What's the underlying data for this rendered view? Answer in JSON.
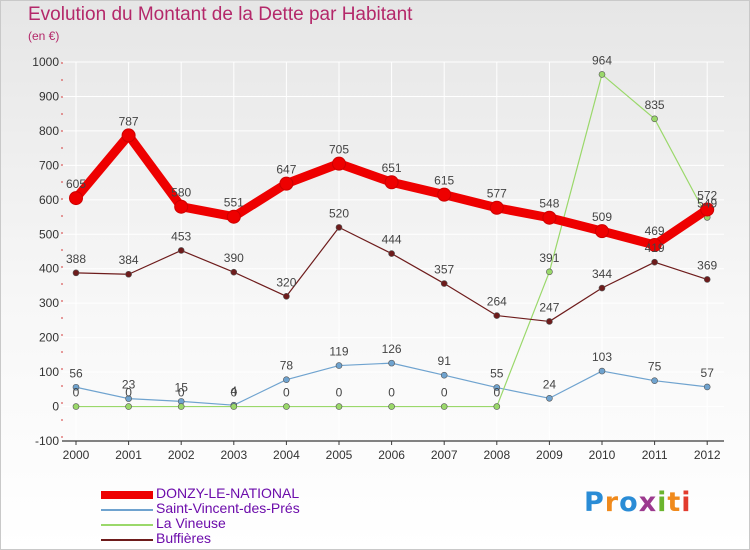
{
  "title": "Evolution du Montant de la Dette par Habitant",
  "unit": "(en €)",
  "brand": {
    "letters": [
      {
        "ch": "P",
        "color": "#2a8cd6"
      },
      {
        "ch": "r",
        "color": "#f08a1c"
      },
      {
        "ch": "o",
        "color": "#2a8cd6"
      },
      {
        "ch": "x",
        "color": "#9c3a8e"
      },
      {
        "ch": "i",
        "color": "#6bb52e"
      },
      {
        "ch": "t",
        "color": "#f08a1c"
      },
      {
        "ch": "i",
        "color": "#e23b2e"
      }
    ]
  },
  "chart_data": {
    "type": "line",
    "x": [
      "2000",
      "2001",
      "2002",
      "2003",
      "2004",
      "2005",
      "2006",
      "2007",
      "2008",
      "2009",
      "2010",
      "2011",
      "2012"
    ],
    "ylim": [
      -100,
      1000
    ],
    "yticks": [
      "-100",
      "0",
      "100",
      "200",
      "300",
      "400",
      "500",
      "600",
      "700",
      "800",
      "900",
      "1000"
    ],
    "grid": true,
    "legend": "bottom-left",
    "series": [
      {
        "name": "DONZY-LE-NATIONAL",
        "color": "#ee0000",
        "weight": "bold",
        "values": [
          605,
          787,
          580,
          551,
          647,
          705,
          651,
          615,
          577,
          548,
          509,
          469,
          572
        ]
      },
      {
        "name": "Saint-Vincent-des-Prés",
        "color": "#6fa3cf",
        "weight": "thin",
        "values": [
          56,
          23,
          15,
          4,
          78,
          119,
          126,
          91,
          55,
          24,
          103,
          75,
          57
        ]
      },
      {
        "name": "La Vineuse",
        "color": "#9ad86a",
        "weight": "thin",
        "values": [
          0,
          0,
          0,
          0,
          0,
          0,
          0,
          0,
          0,
          391,
          964,
          835,
          549
        ]
      },
      {
        "name": "Buffières",
        "color": "#6e1c1c",
        "weight": "thin",
        "values": [
          388,
          384,
          453,
          390,
          320,
          520,
          444,
          357,
          264,
          247,
          344,
          419,
          369
        ]
      }
    ]
  }
}
